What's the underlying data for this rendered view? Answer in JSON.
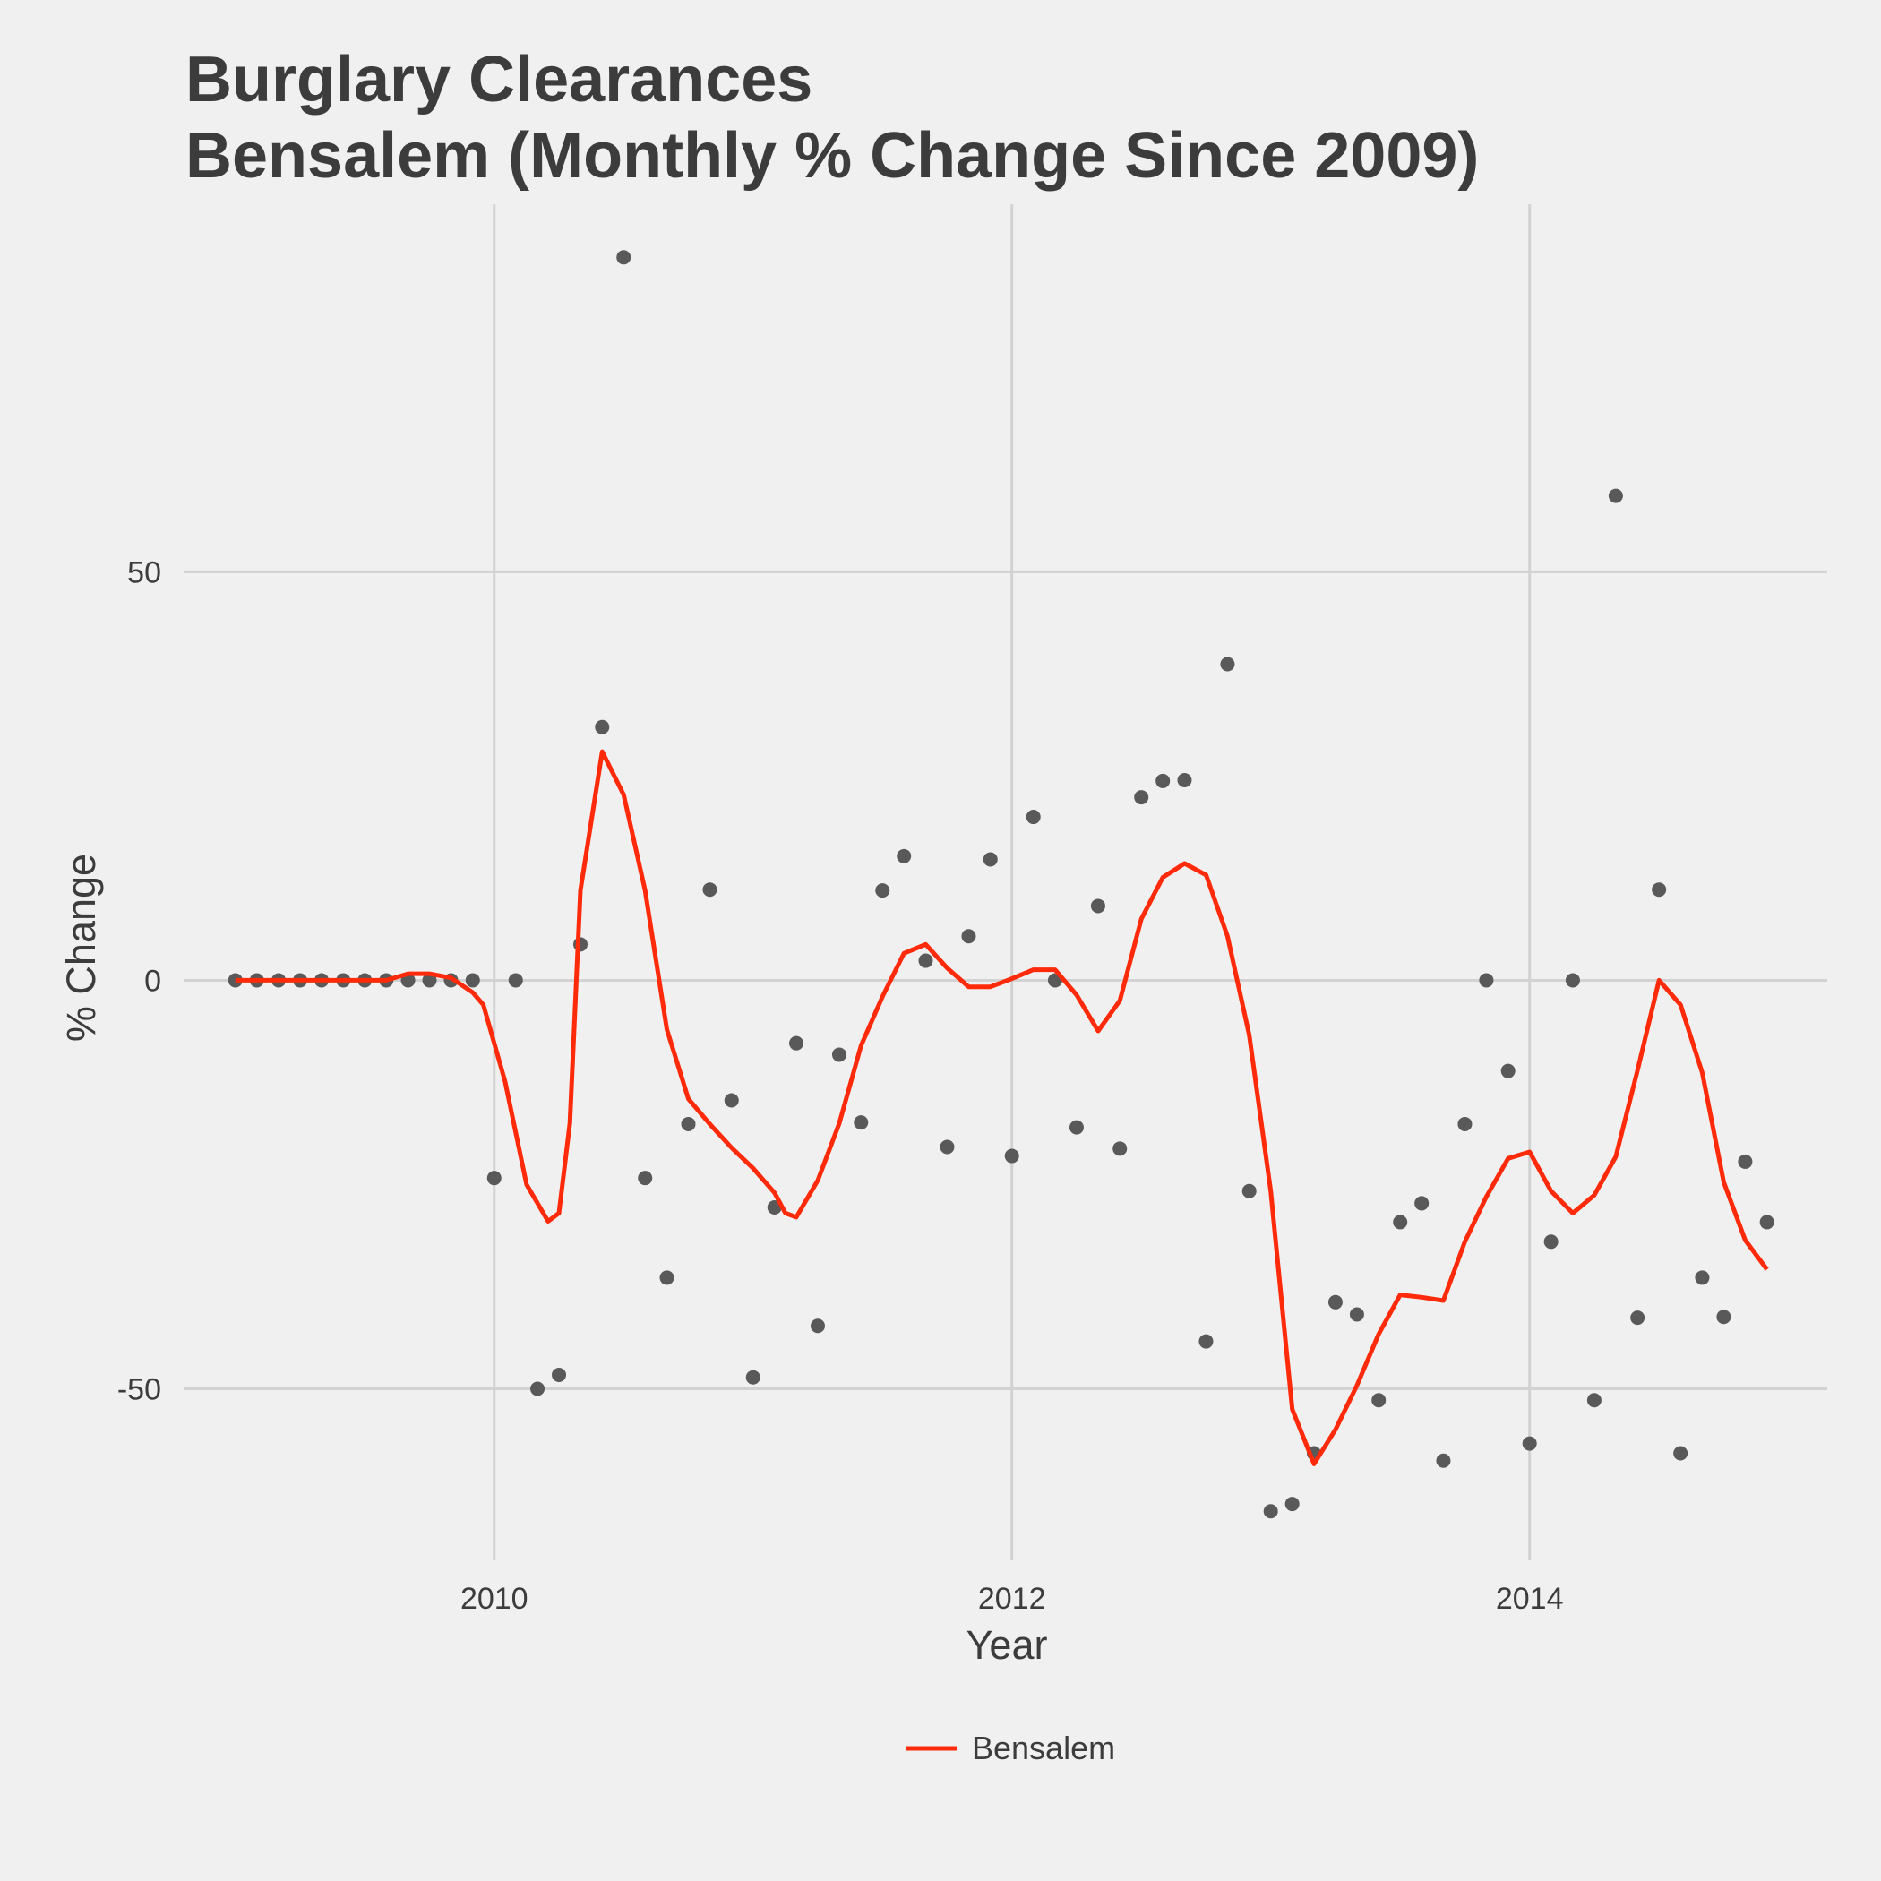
{
  "chart_data": {
    "type": "line",
    "title": "Burglary Clearances",
    "subtitle": "Bensalem (Monthly % Change Since 2009)",
    "xlabel": "Year",
    "ylabel": "% Change",
    "xlim": [
      2008.8,
      2015.15
    ],
    "ylim": [
      -71,
      95
    ],
    "x_ticks": [
      2010,
      2012,
      2014
    ],
    "x_tick_labels": [
      "2010",
      "2012",
      "2014"
    ],
    "y_ticks": [
      -50,
      0,
      50
    ],
    "y_tick_labels": [
      "-50",
      "0",
      "50"
    ],
    "grid": true,
    "legend_position": "bottom",
    "colors": {
      "line": "#ff2a0a",
      "points": "#595959",
      "background": "#f0f0f0",
      "grid": "#d2d2d2"
    },
    "points": {
      "x": [
        2009.0,
        2009.083,
        2009.167,
        2009.25,
        2009.333,
        2009.417,
        2009.5,
        2009.583,
        2009.667,
        2009.75,
        2009.833,
        2009.917,
        2010.0,
        2010.083,
        2010.167,
        2010.25,
        2010.333,
        2010.417,
        2010.5,
        2010.583,
        2010.667,
        2010.75,
        2010.833,
        2010.917,
        2011.0,
        2011.083,
        2011.167,
        2011.25,
        2011.333,
        2011.417,
        2011.5,
        2011.583,
        2011.667,
        2011.75,
        2011.833,
        2011.917,
        2012.0,
        2012.083,
        2012.167,
        2012.25,
        2012.333,
        2012.417,
        2012.5,
        2012.583,
        2012.667,
        2012.75,
        2012.833,
        2012.917,
        2013.0,
        2013.083,
        2013.167,
        2013.25,
        2013.333,
        2013.417,
        2013.5,
        2013.583,
        2013.667,
        2013.75,
        2013.833,
        2013.917,
        2014.0,
        2014.083,
        2014.167,
        2014.25,
        2014.333,
        2014.417,
        2014.5,
        2014.583,
        2014.667,
        2014.75,
        2014.833,
        2014.917
      ],
      "y": [
        0,
        0,
        0,
        0,
        0,
        0,
        0,
        0,
        0,
        0,
        0,
        0,
        -24.2,
        0,
        -50.0,
        -48.3,
        4.4,
        31.0,
        88.5,
        -24.2,
        -36.4,
        -17.6,
        11.1,
        -14.7,
        -48.6,
        -27.8,
        -7.7,
        -42.3,
        -9.1,
        -17.4,
        11.0,
        15.2,
        2.4,
        -20.4,
        5.4,
        14.8,
        -21.5,
        20.0,
        0,
        -18.0,
        9.1,
        -20.6,
        22.4,
        24.4,
        24.5,
        -44.2,
        38.7,
        -25.8,
        -65.0,
        -64.1,
        -57.9,
        -39.4,
        -40.9,
        -51.4,
        -29.6,
        -27.3,
        -58.8,
        -17.6,
        0,
        -11.1,
        -56.7,
        -32.0,
        0,
        -51.4,
        59.3,
        -41.3,
        11.1,
        -57.9,
        -36.4,
        -41.2,
        -22.2,
        -29.6
      ]
    },
    "series": [
      {
        "name": "Bensalem",
        "x": [
          2009.0,
          2009.083,
          2009.167,
          2009.25,
          2009.333,
          2009.417,
          2009.5,
          2009.583,
          2009.667,
          2009.75,
          2009.833,
          2009.917,
          2009.958,
          2010.042,
          2010.125,
          2010.208,
          2010.25,
          2010.292,
          2010.333,
          2010.417,
          2010.5,
          2010.583,
          2010.667,
          2010.75,
          2010.833,
          2010.917,
          2011.0,
          2011.083,
          2011.125,
          2011.167,
          2011.25,
          2011.333,
          2011.417,
          2011.5,
          2011.583,
          2011.667,
          2011.75,
          2011.833,
          2011.917,
          2012.0,
          2012.083,
          2012.167,
          2012.25,
          2012.333,
          2012.417,
          2012.5,
          2012.583,
          2012.667,
          2012.75,
          2012.833,
          2012.917,
          2013.0,
          2013.083,
          2013.167,
          2013.25,
          2013.333,
          2013.417,
          2013.5,
          2013.583,
          2013.667,
          2013.75,
          2013.833,
          2013.917,
          2014.0,
          2014.083,
          2014.167,
          2014.25,
          2014.333,
          2014.417,
          2014.5,
          2014.583,
          2014.667,
          2014.75,
          2014.833,
          2014.917
        ],
        "y": [
          0,
          0,
          0,
          0,
          0,
          0,
          0,
          0,
          0.8,
          0.8,
          0.3,
          -1.5,
          -3.0,
          -12.4,
          -25.0,
          -29.5,
          -28.5,
          -17.5,
          11.0,
          28.0,
          22.7,
          11.0,
          -6.0,
          -14.5,
          -17.6,
          -20.5,
          -23.0,
          -26.0,
          -28.5,
          -29.0,
          -24.5,
          -17.5,
          -8.0,
          -2.0,
          3.3,
          4.4,
          1.5,
          -0.8,
          -0.8,
          0.2,
          1.3,
          1.3,
          -1.8,
          -6.2,
          -2.5,
          7.5,
          12.6,
          14.3,
          12.9,
          5.4,
          -6.7,
          -25.8,
          -52.5,
          -59.2,
          -55.0,
          -49.6,
          -43.3,
          -38.5,
          -38.8,
          -39.2,
          -32.0,
          -26.5,
          -21.8,
          -21.0,
          -25.8,
          -28.5,
          -26.3,
          -21.6,
          -11.0,
          0,
          -3.0,
          -11.3,
          -24.7,
          -31.8,
          -35.4
        ]
      }
    ]
  },
  "legend": {
    "label": "Bensalem"
  }
}
